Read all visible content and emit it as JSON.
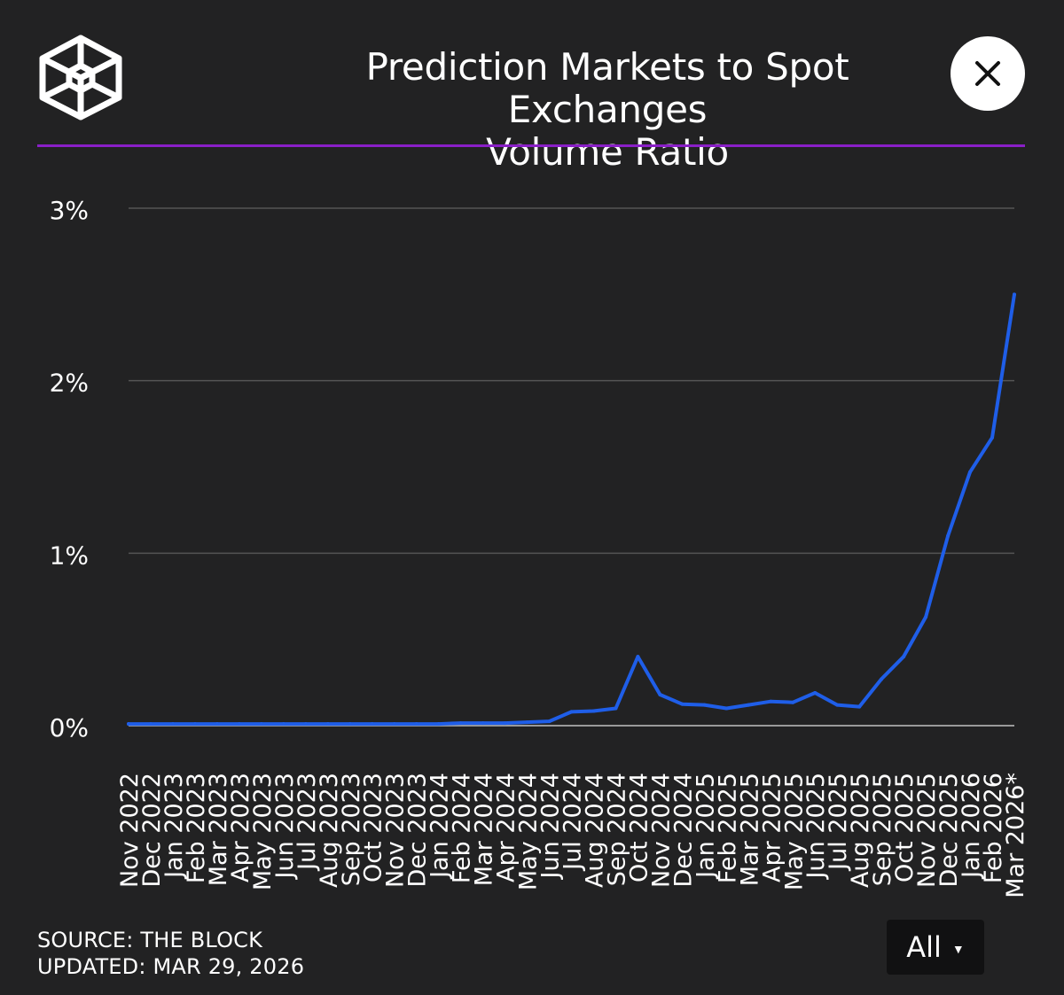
{
  "header": {
    "title_line1": "Prediction Markets to Spot Exchanges",
    "title_line2": "Volume Ratio",
    "close_label": "×"
  },
  "colors": {
    "background": "#222223",
    "accent_divider": "#8a1fc7",
    "series_line": "#1f5ee8",
    "grid": "#555555",
    "text": "#ffffff"
  },
  "chart_data": {
    "type": "line",
    "title": "Prediction Markets to Spot Exchanges Volume Ratio",
    "xlabel": "",
    "ylabel": "",
    "ylim": [
      0,
      3
    ],
    "yticks": [
      0,
      1,
      2,
      3
    ],
    "ytick_labels": [
      "0%",
      "1%",
      "2%",
      "3%"
    ],
    "grid": true,
    "categories": [
      "Nov 2022",
      "Dec 2022",
      "Jan 2023",
      "Feb 2023",
      "Mar 2023",
      "Apr 2023",
      "May 2023",
      "Jun 2023",
      "Jul 2023",
      "Aug 2023",
      "Sep 2023",
      "Oct 2023",
      "Nov 2023",
      "Dec 2023",
      "Jan 2024",
      "Feb 2024",
      "Mar 2024",
      "Apr 2024",
      "May 2024",
      "Jun 2024",
      "Jul 2024",
      "Aug 2024",
      "Sep 2024",
      "Oct 2024",
      "Nov 2024",
      "Dec 2024",
      "Jan 2025",
      "Feb 2025",
      "Mar 2025",
      "Apr 2025",
      "May 2025",
      "Jun 2025",
      "Jul 2025",
      "Aug 2025",
      "Sep 2025",
      "Oct 2025",
      "Nov 2025",
      "Dec 2025",
      "Jan 2026",
      "Feb 2026",
      "Mar 2026*"
    ],
    "series": [
      {
        "name": "Prediction Markets / Spot Exchanges Volume Ratio (%)",
        "values": [
          0.01,
          0.01,
          0.01,
          0.01,
          0.01,
          0.01,
          0.01,
          0.01,
          0.01,
          0.01,
          0.01,
          0.01,
          0.01,
          0.01,
          0.01,
          0.015,
          0.015,
          0.015,
          0.02,
          0.025,
          0.08,
          0.085,
          0.1,
          0.4,
          0.18,
          0.125,
          0.12,
          0.1,
          0.12,
          0.14,
          0.135,
          0.19,
          0.12,
          0.11,
          0.27,
          0.4,
          0.63,
          1.1,
          1.47,
          1.67,
          2.5
        ]
      }
    ]
  },
  "footer": {
    "source_line": "SOURCE: THE BLOCK",
    "updated_line": "UPDATED: MAR 29, 2026"
  },
  "range_selector": {
    "value": "All",
    "caret": "▼"
  }
}
